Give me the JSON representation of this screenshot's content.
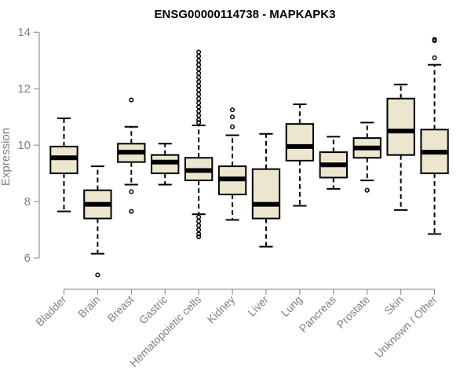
{
  "chart_data": {
    "type": "boxplot",
    "title": "ENSG00000114738 - MAPKAPK3",
    "xlabel": "",
    "ylabel": "Expression",
    "ylim": [
      5.0,
      14.2
    ],
    "yticks": [
      6,
      8,
      10,
      12,
      14
    ],
    "box_fill": "#ede6cf",
    "box_stroke": "#000000",
    "axis_color": "#808080",
    "categories": [
      "Bladder",
      "Brain",
      "Breast",
      "Gastric",
      "Hematopoietic cells",
      "Kidney",
      "Liver",
      "Lung",
      "Pancreas",
      "Prostate",
      "Skin",
      "Unknown / Other"
    ],
    "boxes": [
      {
        "category": "Bladder",
        "whisker_low": 7.65,
        "q1": 9.0,
        "median": 9.55,
        "q3": 9.95,
        "whisker_high": 10.95,
        "outliers": []
      },
      {
        "category": "Brain",
        "whisker_low": 6.15,
        "q1": 7.4,
        "median": 7.9,
        "q3": 8.4,
        "whisker_high": 9.25,
        "outliers": [
          5.4
        ]
      },
      {
        "category": "Breast",
        "whisker_low": 8.6,
        "q1": 9.4,
        "median": 9.75,
        "q3": 10.05,
        "whisker_high": 10.65,
        "outliers": [
          11.6,
          8.35,
          7.65
        ]
      },
      {
        "category": "Gastric",
        "whisker_low": 8.6,
        "q1": 9.0,
        "median": 9.4,
        "q3": 9.65,
        "whisker_high": 10.05,
        "outliers": []
      },
      {
        "category": "Hematopoietic cells",
        "whisker_low": 7.55,
        "q1": 8.75,
        "median": 9.1,
        "q3": 9.55,
        "whisker_high": 10.7,
        "outliers": [
          13.3,
          13.15,
          13.0,
          12.85,
          12.7,
          12.55,
          12.4,
          12.25,
          12.1,
          11.95,
          11.8,
          11.65,
          11.5,
          11.35,
          11.2,
          11.05,
          10.9,
          10.8,
          7.45,
          7.3,
          7.15,
          7.0,
          6.85,
          6.75
        ]
      },
      {
        "category": "Kidney",
        "whisker_low": 7.35,
        "q1": 8.25,
        "median": 8.8,
        "q3": 9.25,
        "whisker_high": 10.35,
        "outliers": [
          11.25,
          11.0,
          10.65
        ]
      },
      {
        "category": "Liver",
        "whisker_low": 6.4,
        "q1": 7.4,
        "median": 7.9,
        "q3": 9.15,
        "whisker_high": 10.4,
        "outliers": []
      },
      {
        "category": "Lung",
        "whisker_low": 7.85,
        "q1": 9.45,
        "median": 9.95,
        "q3": 10.75,
        "whisker_high": 11.45,
        "outliers": []
      },
      {
        "category": "Pancreas",
        "whisker_low": 8.45,
        "q1": 8.85,
        "median": 9.3,
        "q3": 9.75,
        "whisker_high": 10.3,
        "outliers": []
      },
      {
        "category": "Prostate",
        "whisker_low": 8.75,
        "q1": 9.55,
        "median": 9.9,
        "q3": 10.25,
        "whisker_high": 10.8,
        "outliers": [
          8.4
        ]
      },
      {
        "category": "Skin",
        "whisker_low": 7.7,
        "q1": 9.65,
        "median": 10.5,
        "q3": 11.65,
        "whisker_high": 12.15,
        "outliers": []
      },
      {
        "category": "Unknown / Other",
        "whisker_low": 6.85,
        "q1": 9.0,
        "median": 9.75,
        "q3": 10.55,
        "whisker_high": 12.85,
        "outliers": [
          13.75,
          13.7,
          13.1
        ]
      }
    ]
  }
}
